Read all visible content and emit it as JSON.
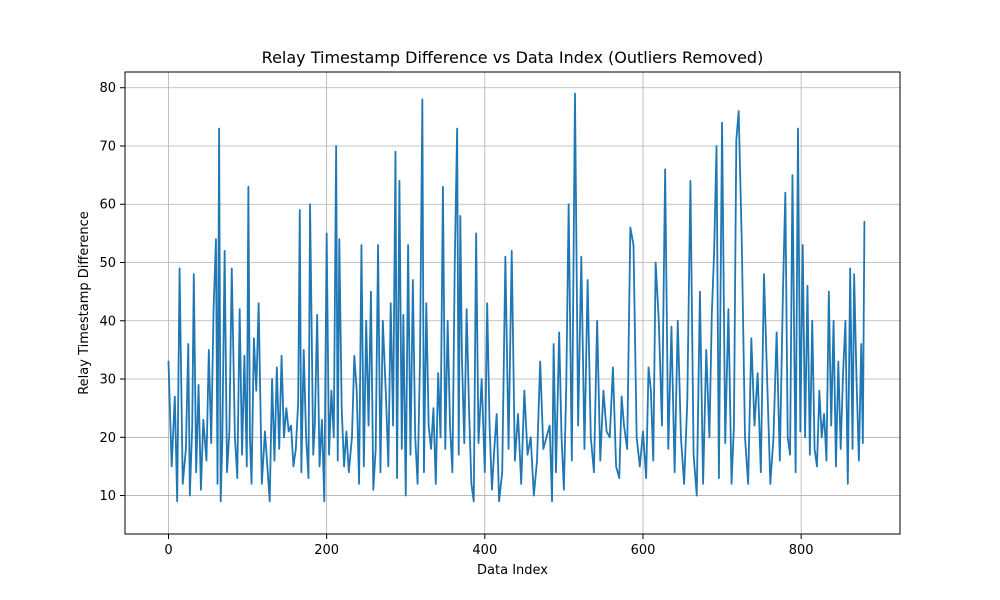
{
  "chart_data": {
    "type": "line",
    "title": "Relay Timestamp Difference vs Data Index (Outliers Removed)",
    "xlabel": "Data Index",
    "ylabel": "Relay Timestamp Difference",
    "xlim": [
      -55,
      925
    ],
    "ylim": [
      3.4,
      82.7
    ],
    "xticks": [
      0,
      200,
      400,
      600,
      800
    ],
    "yticks": [
      10,
      20,
      30,
      40,
      50,
      60,
      70,
      80
    ],
    "grid": true,
    "series": [
      {
        "color": "#1f77b4",
        "x": [
          0,
          4,
          8,
          11,
          14,
          18,
          22,
          25,
          27,
          30,
          32,
          35,
          38,
          41,
          44,
          48,
          51,
          54,
          57,
          60,
          62,
          64,
          66,
          68,
          71,
          74,
          77,
          80,
          84,
          87,
          90,
          93,
          96,
          99,
          101,
          103,
          105,
          108,
          111,
          114,
          118,
          122,
          125,
          128,
          131,
          134,
          137,
          140,
          143,
          146,
          149,
          152,
          155,
          158,
          161,
          164,
          166,
          168,
          171,
          174,
          177,
          179,
          181,
          183,
          185,
          188,
          191,
          194,
          197,
          200,
          203,
          206,
          209,
          212,
          214,
          216,
          219,
          222,
          225,
          228,
          232,
          235,
          238,
          241,
          244,
          247,
          250,
          253,
          256,
          259,
          262,
          265,
          268,
          271,
          275,
          278,
          281,
          284,
          287,
          289,
          292,
          295,
          297,
          300,
          303,
          306,
          309,
          312,
          315,
          318,
          321,
          323,
          326,
          329,
          332,
          335,
          338,
          341,
          344,
          347,
          350,
          353,
          356,
          359,
          362,
          365,
          367,
          369,
          371,
          374,
          377,
          380,
          383,
          386,
          389,
          392,
          396,
          400,
          403,
          406,
          409,
          412,
          415,
          418,
          422,
          426,
          430,
          434,
          438,
          442,
          446,
          450,
          454,
          458,
          462,
          466,
          470,
          474,
          478,
          482,
          485,
          487,
          490,
          494,
          497,
          500,
          503,
          506,
          510,
          514,
          518,
          522,
          526,
          530,
          534,
          538,
          542,
          546,
          550,
          554,
          558,
          562,
          566,
          570,
          573,
          576,
          580,
          584,
          588,
          592,
          596,
          600,
          604,
          607,
          610,
          613,
          616,
          620,
          624,
          628,
          632,
          636,
          640,
          644,
          648,
          652,
          656,
          660,
          664,
          668,
          672,
          676,
          680,
          684,
          687,
          690,
          693,
          696,
          700,
          704,
          708,
          712,
          715,
          718,
          721,
          725,
          729,
          733,
          737,
          741,
          745,
          749,
          753,
          757,
          761,
          765,
          769,
          773,
          777,
          780,
          783,
          786,
          789,
          793,
          796,
          799,
          802,
          805,
          808,
          811,
          814,
          817,
          820,
          823,
          826,
          829,
          832,
          835,
          838,
          841,
          844,
          847,
          850,
          853,
          856,
          859,
          862,
          865,
          867,
          870,
          873,
          876,
          878,
          880
        ],
        "y": [
          33,
          15,
          27,
          9,
          49,
          12,
          18,
          36,
          10,
          22,
          48,
          14,
          29,
          11,
          23,
          16,
          35,
          19,
          42,
          54,
          12,
          73,
          9,
          19,
          52,
          14,
          21,
          49,
          20,
          13,
          42,
          17,
          34,
          15,
          63,
          20,
          12,
          37,
          28,
          43,
          12,
          21,
          15,
          9,
          30,
          16,
          32,
          18,
          34,
          20,
          25,
          21,
          22,
          15,
          18,
          26,
          59,
          14,
          35,
          20,
          13,
          60,
          39,
          17,
          22,
          41,
          15,
          23,
          9,
          55,
          17,
          28,
          20,
          70,
          16,
          54,
          25,
          15,
          21,
          14,
          20,
          34,
          28,
          12,
          53,
          15,
          40,
          22,
          45,
          11,
          18,
          53,
          14,
          40,
          27,
          15,
          43,
          22,
          69,
          13,
          64,
          18,
          41,
          10,
          53,
          17,
          47,
          20,
          12,
          33,
          78,
          14,
          43,
          22,
          18,
          25,
          12,
          31,
          20,
          63,
          18,
          40,
          22,
          14,
          50,
          73,
          17,
          58,
          34,
          19,
          42,
          25,
          12,
          9,
          55,
          19,
          30,
          14,
          43,
          22,
          11,
          18,
          24,
          9,
          14,
          51,
          18,
          52,
          16,
          24,
          12,
          28,
          17,
          20,
          10,
          16,
          33,
          18,
          20,
          22,
          9,
          36,
          14,
          38,
          20,
          11,
          29,
          60,
          16,
          79,
          22,
          51,
          18,
          47,
          20,
          14,
          40,
          16,
          28,
          21,
          20,
          32,
          15,
          13,
          27,
          22,
          18,
          56,
          53,
          20,
          15,
          21,
          13,
          32,
          28,
          16,
          50,
          40,
          22,
          66,
          18,
          39,
          14,
          40,
          20,
          12,
          26,
          64,
          17,
          10,
          45,
          12,
          35,
          20,
          41,
          52,
          70,
          13,
          74,
          19,
          42,
          12,
          22,
          71,
          76,
          53,
          20,
          12,
          37,
          22,
          31,
          14,
          48,
          30,
          12,
          20,
          38,
          16,
          45,
          62,
          20,
          17,
          65,
          14,
          73,
          21,
          53,
          20,
          46,
          17,
          40,
          18,
          15,
          28,
          20,
          24,
          16,
          45,
          22,
          40,
          15,
          33,
          18,
          31,
          40,
          12,
          49,
          18,
          48,
          30,
          16,
          36,
          19,
          57
        ]
      }
    ]
  }
}
